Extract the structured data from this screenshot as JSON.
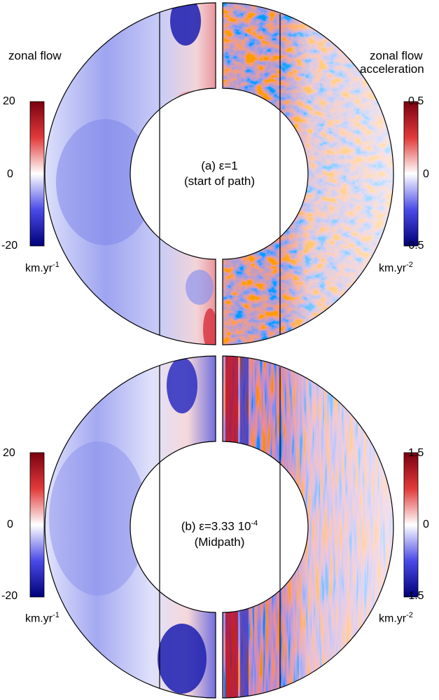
{
  "colors": {
    "red": "#b2001a",
    "white": "#ffffff",
    "blue": "#14149c",
    "outline": "#000000"
  },
  "panel_a": {
    "left_title": "zonal flow",
    "right_title_1": "zonal flow",
    "right_title_2": "acceleration",
    "left_cbar": {
      "max": "20",
      "mid": "0",
      "min": "-20",
      "unit": "km.yr",
      "unit_exp": "-1"
    },
    "right_cbar": {
      "max": "0.5",
      "mid": "0",
      "min": "-0.5",
      "unit": "km.yr",
      "unit_exp": "-2"
    },
    "label_prefix": "(a)",
    "label_eps": "ε=1",
    "label_line2": "(start of path)"
  },
  "panel_b": {
    "left_cbar": {
      "max": "20",
      "mid": "0",
      "min": "-20",
      "unit": "km.yr",
      "unit_exp": "-1"
    },
    "right_cbar": {
      "max": "1.5",
      "mid": "0",
      "min": "-1.5",
      "unit": "km.yr",
      "unit_exp": "-2"
    },
    "label_prefix": "(b)",
    "label_eps": "ε=3.33 10",
    "label_eps_exp": "-4",
    "label_line2": "(Midpath)"
  }
}
